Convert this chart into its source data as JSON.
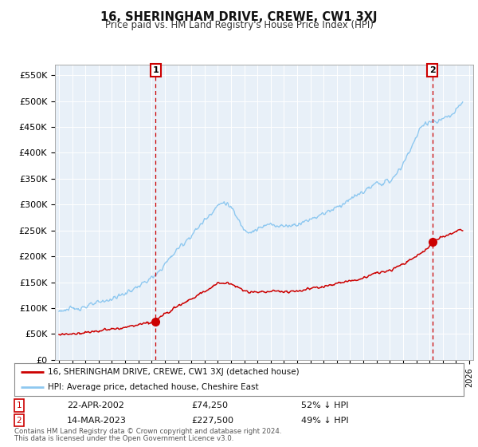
{
  "title": "16, SHERINGHAM DRIVE, CREWE, CW1 3XJ",
  "subtitle": "Price paid vs. HM Land Registry's House Price Index (HPI)",
  "hpi_color": "#8ec8f0",
  "price_color": "#cc0000",
  "background_color": "#ffffff",
  "plot_bg_color": "#e8f0f8",
  "grid_color": "#ffffff",
  "ylim": [
    0,
    570000
  ],
  "yticks": [
    0,
    50000,
    100000,
    150000,
    200000,
    250000,
    300000,
    350000,
    400000,
    450000,
    500000,
    550000
  ],
  "ytick_labels": [
    "£0",
    "£50K",
    "£100K",
    "£150K",
    "£200K",
    "£250K",
    "£300K",
    "£350K",
    "£400K",
    "£450K",
    "£500K",
    "£550K"
  ],
  "transaction1_date": "22-APR-2002",
  "transaction1_price": 74250,
  "transaction1_pct": "52% ↓ HPI",
  "transaction1_x": 2002.31,
  "transaction2_date": "14-MAR-2023",
  "transaction2_price": 227500,
  "transaction2_pct": "49% ↓ HPI",
  "transaction2_x": 2023.21,
  "legend_line1": "16, SHERINGHAM DRIVE, CREWE, CW1 3XJ (detached house)",
  "legend_line2": "HPI: Average price, detached house, Cheshire East",
  "footer1": "Contains HM Land Registry data © Crown copyright and database right 2024.",
  "footer2": "This data is licensed under the Open Government Licence v3.0."
}
